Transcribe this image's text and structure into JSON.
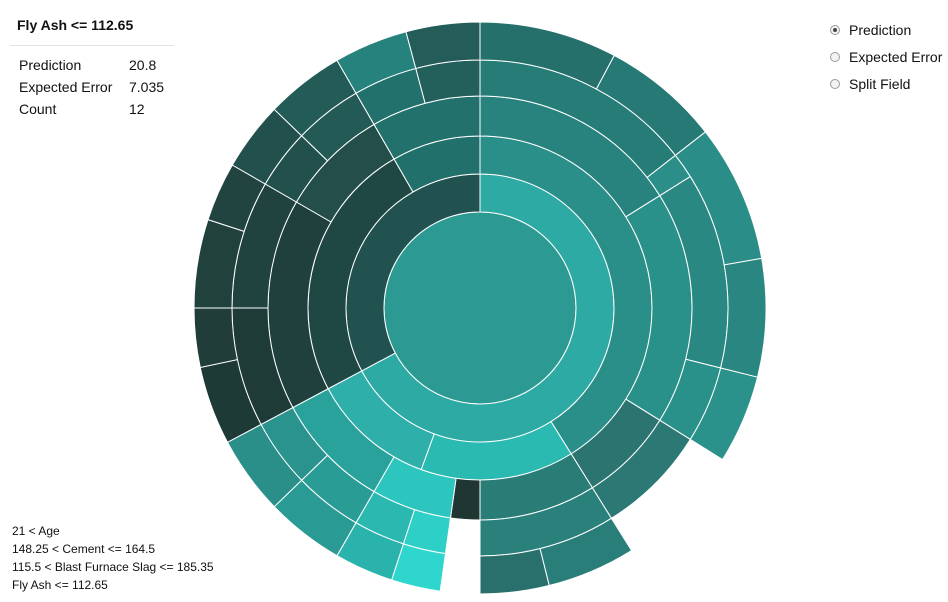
{
  "info": {
    "title": "Fly Ash <= 112.65",
    "rows": [
      {
        "label": "Prediction",
        "value": "20.8"
      },
      {
        "label": "Expected Error",
        "value": "7.035"
      },
      {
        "label": "Count",
        "value": "12"
      }
    ]
  },
  "options": [
    {
      "label": "Prediction",
      "checked": true
    },
    {
      "label": "Expected Error",
      "checked": false
    },
    {
      "label": "Split Field",
      "checked": false
    }
  ],
  "breadcrumb": [
    "21 < Age",
    "148.25 < Cement <= 164.5",
    "115.5 < Blast Furnace Slag <= 185.35",
    "Fly Ash <= 112.65"
  ],
  "chart_data": {
    "type": "sunburst",
    "color_encoding": "Prediction",
    "palette": {
      "low": "#1c2f2c",
      "mid": "#1f7a74",
      "high": "#2fe5dc"
    },
    "rings": [
      [
        {
          "s": 0,
          "e": 360,
          "c": "#2c9a93"
        }
      ],
      [
        {
          "s": 0,
          "e": 242,
          "c": "#2eaaa4"
        },
        {
          "s": 242,
          "e": 360,
          "c": "#22524f"
        }
      ],
      [
        {
          "s": 0,
          "e": 148,
          "c": "#2a8f89"
        },
        {
          "s": 148,
          "e": 200,
          "c": "#2bbab2"
        },
        {
          "s": 200,
          "e": 242,
          "c": "#2eafa9"
        },
        {
          "s": 242,
          "e": 330,
          "c": "#1f4743"
        },
        {
          "s": 330,
          "e": 360,
          "c": "#22706b"
        }
      ],
      [
        {
          "s": 0,
          "e": 58,
          "c": "#28837e"
        },
        {
          "s": 58,
          "e": 122,
          "c": "#2a908a"
        },
        {
          "s": 122,
          "e": 148,
          "c": "#2b7470"
        },
        {
          "s": 148,
          "e": 180,
          "c": "#2a7c77"
        },
        {
          "s": 180,
          "e": 188,
          "c": "#203633"
        },
        {
          "s": 188,
          "e": 210,
          "c": "#2cc6bf"
        },
        {
          "s": 210,
          "e": 242,
          "c": "#2aa29c"
        },
        {
          "s": 242,
          "e": 300,
          "c": "#1f403c"
        },
        {
          "s": 300,
          "e": 330,
          "c": "#234e4a"
        },
        {
          "s": 330,
          "e": 360,
          "c": "#22716c"
        }
      ],
      [
        {
          "s": 0,
          "e": 52,
          "c": "#267d78"
        },
        {
          "s": 52,
          "e": 58,
          "c": "#2b8e88"
        },
        {
          "s": 58,
          "e": 104,
          "c": "#2a8883"
        },
        {
          "s": 104,
          "e": 122,
          "c": "#2a908a"
        },
        {
          "s": 122,
          "e": 148,
          "c": "#2b7874"
        },
        {
          "s": 148,
          "e": 180,
          "c": "#2a817c"
        },
        {
          "s": 188,
          "e": 198,
          "c": "#2ecfc7"
        },
        {
          "s": 198,
          "e": 210,
          "c": "#2bb8b1"
        },
        {
          "s": 210,
          "e": 226,
          "c": "#2a9c96"
        },
        {
          "s": 226,
          "e": 242,
          "c": "#2b938d"
        },
        {
          "s": 242,
          "e": 270,
          "c": "#1e3b37"
        },
        {
          "s": 270,
          "e": 300,
          "c": "#21433f"
        },
        {
          "s": 300,
          "e": 314,
          "c": "#22504c"
        },
        {
          "s": 314,
          "e": 330,
          "c": "#235a56"
        },
        {
          "s": 330,
          "e": 345,
          "c": "#22716c"
        },
        {
          "s": 345,
          "e": 360,
          "c": "#235f5b"
        }
      ],
      [
        {
          "s": 0,
          "e": 28,
          "c": "#26706b"
        },
        {
          "s": 28,
          "e": 52,
          "c": "#267975"
        },
        {
          "s": 52,
          "e": 80,
          "c": "#2a8d87"
        },
        {
          "s": 80,
          "e": 104,
          "c": "#2a8681"
        },
        {
          "s": 104,
          "e": 122,
          "c": "#2a918b"
        },
        {
          "s": 148,
          "e": 166,
          "c": "#2a7e79"
        },
        {
          "s": 166,
          "e": 180,
          "c": "#296f6b"
        },
        {
          "s": 188,
          "e": 198,
          "c": "#2fd6ce"
        },
        {
          "s": 198,
          "e": 210,
          "c": "#2ab3ad"
        },
        {
          "s": 210,
          "e": 226,
          "c": "#2a9a94"
        },
        {
          "s": 226,
          "e": 242,
          "c": "#2b8f89"
        },
        {
          "s": 242,
          "e": 258,
          "c": "#1e3a36"
        },
        {
          "s": 258,
          "e": 270,
          "c": "#203d39"
        },
        {
          "s": 270,
          "e": 288,
          "c": "#21413d"
        },
        {
          "s": 288,
          "e": 300,
          "c": "#214440"
        },
        {
          "s": 300,
          "e": 314,
          "c": "#22514d"
        },
        {
          "s": 314,
          "e": 330,
          "c": "#235b57"
        },
        {
          "s": 330,
          "e": 345,
          "c": "#26827d"
        },
        {
          "s": 345,
          "e": 360,
          "c": "#235c58"
        }
      ]
    ]
  }
}
